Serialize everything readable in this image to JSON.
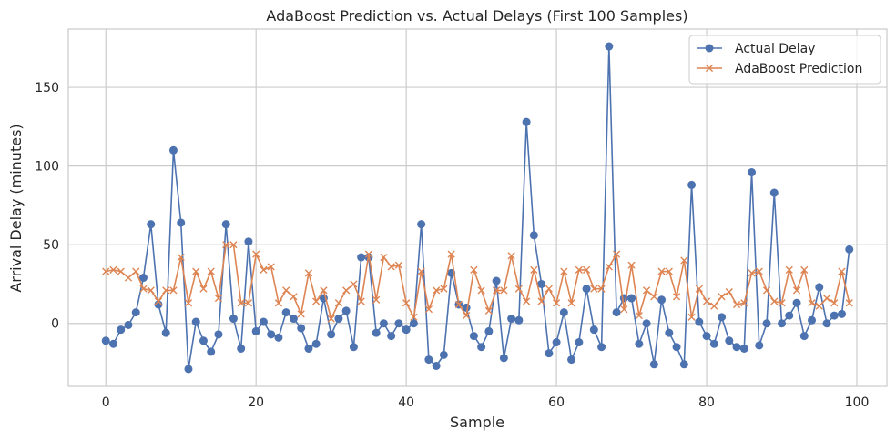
{
  "chart_data": {
    "type": "line",
    "title": "AdaBoost Prediction vs. Actual Delays (First 100 Samples)",
    "xlabel": "Sample",
    "ylabel": "Arrival Delay (minutes)",
    "xlim": [
      -5,
      104
    ],
    "ylim": [
      -40,
      187
    ],
    "xticks": [
      0,
      20,
      40,
      60,
      80,
      100
    ],
    "yticks": [
      0,
      50,
      100,
      150
    ],
    "grid": true,
    "legend_position": "top-right",
    "series": [
      {
        "name": "Actual Delay",
        "color": "#4c72b0",
        "marker": "circle",
        "values": [
          -11,
          -13,
          -4,
          -1,
          7,
          29,
          63,
          12,
          -6,
          110,
          64,
          -29,
          1,
          -11,
          -18,
          -7,
          63,
          3,
          -16,
          52,
          -5,
          1,
          -7,
          -9,
          7,
          3,
          -3,
          -16,
          -13,
          16,
          -7,
          3,
          8,
          -15,
          42,
          42,
          -6,
          0,
          -8,
          0,
          -4,
          0,
          63,
          -23,
          -27,
          -20,
          32,
          12,
          10,
          -8,
          -15,
          -5,
          27,
          -22,
          3,
          2,
          128,
          56,
          25,
          -19,
          -12,
          7,
          -23,
          -12,
          22,
          -4,
          -15,
          176,
          7,
          16,
          16,
          -13,
          0,
          -26,
          15,
          -6,
          -15,
          -26,
          88,
          1,
          -8,
          -13,
          4,
          -11,
          -15,
          -16,
          96,
          -14,
          0,
          83,
          0,
          5,
          13,
          -8,
          2,
          23,
          0,
          5,
          6,
          47
        ]
      },
      {
        "name": "AdaBoost Prediction",
        "color": "#dd8452",
        "marker": "x",
        "values": [
          33,
          34,
          33,
          29,
          33,
          22,
          21,
          14,
          21,
          21,
          42,
          13,
          33,
          22,
          33,
          16,
          50,
          50,
          13,
          13,
          44,
          34,
          36,
          13,
          21,
          17,
          6,
          32,
          14,
          21,
          3,
          13,
          21,
          25,
          14,
          44,
          15,
          42,
          36,
          37,
          13,
          4,
          33,
          9,
          21,
          22,
          44,
          12,
          5,
          34,
          21,
          8,
          21,
          21,
          43,
          22,
          14,
          34,
          14,
          22,
          13,
          33,
          13,
          34,
          34,
          22,
          22,
          36,
          44,
          9,
          37,
          5,
          21,
          17,
          33,
          33,
          17,
          40,
          4,
          22,
          14,
          11,
          17,
          20,
          12,
          13,
          32,
          33,
          21,
          14,
          13,
          34,
          21,
          34,
          13,
          11,
          16,
          13,
          33,
          13
        ]
      }
    ]
  }
}
